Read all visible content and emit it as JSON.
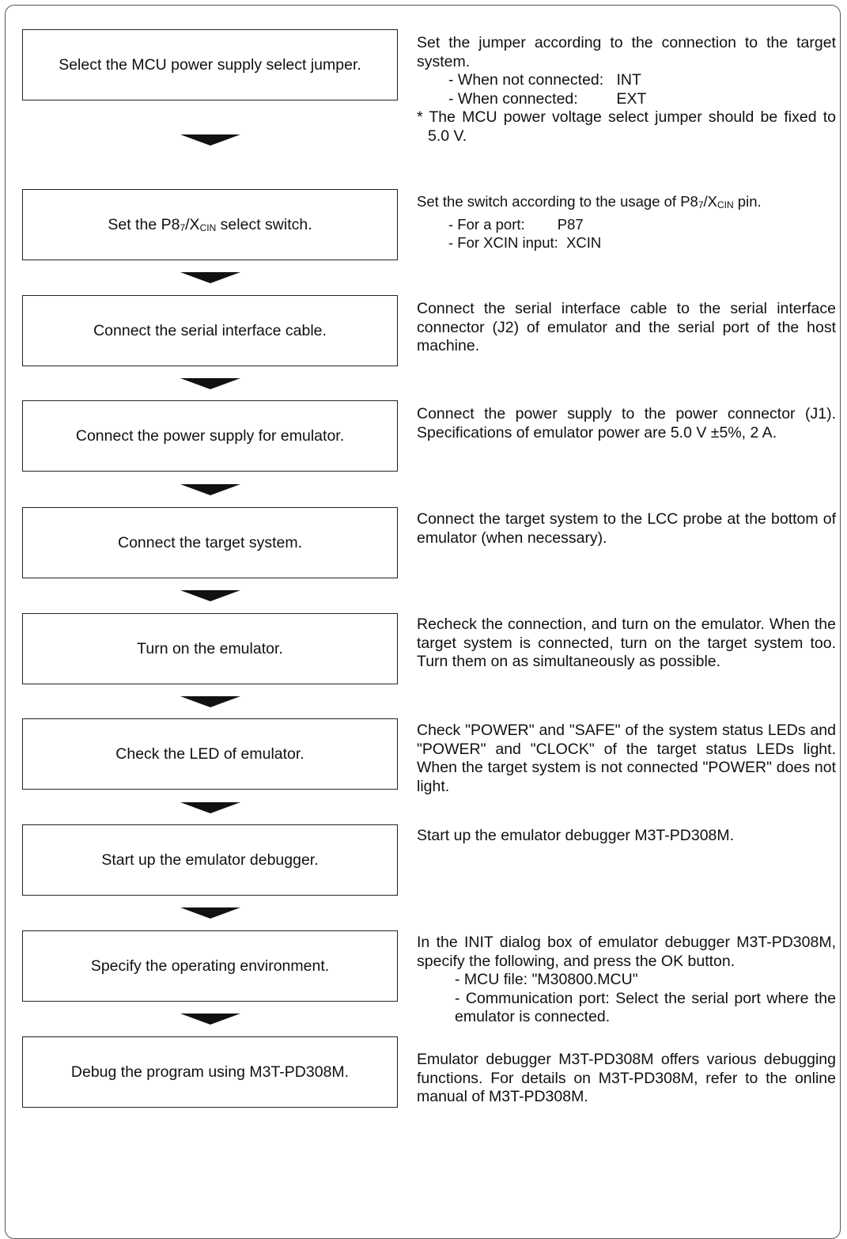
{
  "steps": [
    {
      "label": "Select the MCU power supply select jumper.",
      "desc": [
        "Set the jumper according to the connection to the target system."
      ],
      "items": [
        "- When not connected:   INT",
        "- When connected:         EXT"
      ],
      "note": "* The MCU power voltage select jumper should be fixed to 5.0 V."
    },
    {
      "label_pre": "Set the P8",
      "label_sub": "7",
      "label_mid": "/X",
      "label_sub2": "CIN",
      "label_post": " select switch.",
      "desc_pre": "Set the switch according to the usage of P8",
      "desc_sub": "7",
      "desc_mid": "/X",
      "desc_sub2": "CIN",
      "desc_post": " pin.",
      "items": [
        "- For a port:        P87",
        "- For XCIN input:  XCIN"
      ]
    },
    {
      "label": "Connect the serial interface cable.",
      "desc": [
        "Connect the serial interface cable to the serial interface connector (J2) of emulator and the serial port of the host machine."
      ]
    },
    {
      "label": "Connect the power supply for emulator.",
      "desc": [
        "Connect the power supply to the power connector (J1). Specifications of emulator power are 5.0 V ±5%, 2 A."
      ]
    },
    {
      "label": "Connect the target system.",
      "desc": [
        "Connect the target system to the LCC probe at the bottom of emulator (when necessary)."
      ]
    },
    {
      "label": "Turn on the emulator.",
      "desc": [
        "Recheck the connection, and turn on the emulator. When the target system is connected, turn on the target system too. Turn them on as simultaneously as possible."
      ]
    },
    {
      "label": "Check the LED of emulator.",
      "desc": [
        "Check \"POWER\" and \"SAFE\" of the system status LEDs and \"POWER\" and \"CLOCK\" of the target status LEDs light. When the target system is not connected \"POWER\" does not light."
      ]
    },
    {
      "label": "Start up the emulator debugger.",
      "desc": [
        "Start up the emulator debugger M3T-PD308M."
      ]
    },
    {
      "label": "Specify the operating environment.",
      "desc": [
        "In the INIT dialog box of emulator debugger M3T-PD308M, specify the following, and press the OK button."
      ],
      "items": [
        "- MCU file: \"M30800.MCU\"",
        "- Communication port: Select the serial port where the emulator is connected."
      ]
    },
    {
      "label": "Debug the program using M3T-PD308M.",
      "desc": [
        "Emulator debugger M3T-PD308M offers various debugging functions. For details on M3T-PD308M, refer to the online manual of M3T-PD308M."
      ]
    }
  ]
}
